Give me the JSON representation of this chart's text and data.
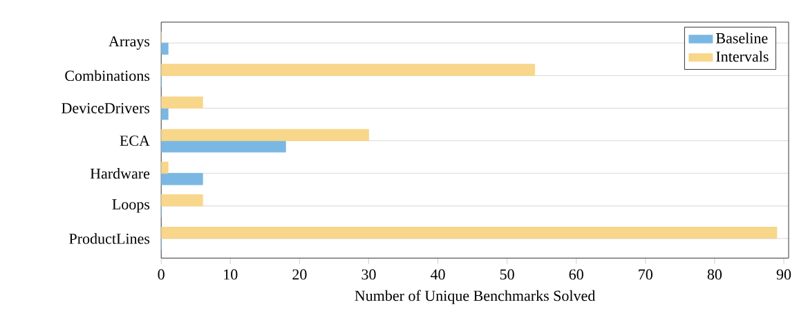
{
  "chart_data": {
    "type": "bar",
    "orientation": "horizontal",
    "xlabel": "Number of Unique Benchmarks Solved",
    "categories": [
      "Arrays",
      "Combinations",
      "DeviceDrivers",
      "ECA",
      "Hardware",
      "Loops",
      "ProductLines"
    ],
    "series": [
      {
        "name": "Baseline",
        "color": "#7ab8e3",
        "values": [
          1,
          0,
          1,
          18,
          6,
          0,
          0
        ]
      },
      {
        "name": "Intervals",
        "color": "#f8d68a",
        "values": [
          0,
          54,
          6,
          30,
          1,
          6,
          89
        ]
      }
    ],
    "xlim": [
      0,
      90.7
    ],
    "xticks": [
      0,
      10,
      20,
      30,
      40,
      50,
      60,
      70,
      80,
      90
    ],
    "grid": "y",
    "legend": "top right"
  }
}
